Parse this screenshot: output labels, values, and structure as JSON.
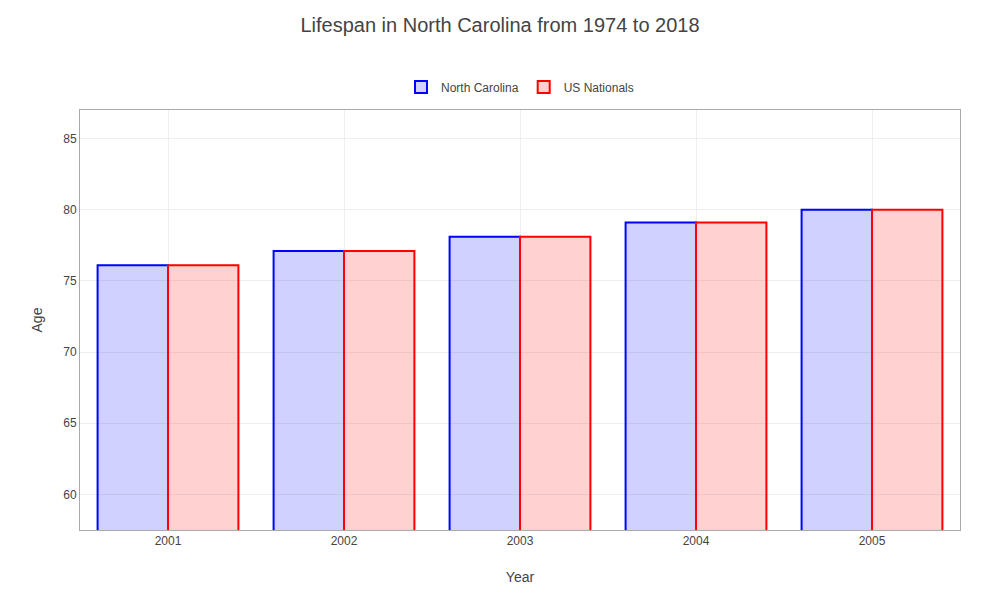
{
  "chart_data": {
    "type": "bar",
    "title": "Lifespan in North Carolina from 1974 to 2018",
    "xlabel": "Year",
    "ylabel": "Age",
    "categories": [
      "2001",
      "2002",
      "2003",
      "2004",
      "2005"
    ],
    "series": [
      {
        "name": "North Carolina",
        "color": "#0000ff",
        "values": [
          76.1,
          77.1,
          78.1,
          79.1,
          80.0
        ]
      },
      {
        "name": "US Nationals",
        "color": "#ff0000",
        "values": [
          76.1,
          77.1,
          78.1,
          79.1,
          80.0
        ]
      }
    ],
    "ylim": [
      57.5,
      87
    ],
    "yticks": [
      60,
      65,
      70,
      75,
      80,
      85
    ],
    "grid": true,
    "legend": "top"
  }
}
